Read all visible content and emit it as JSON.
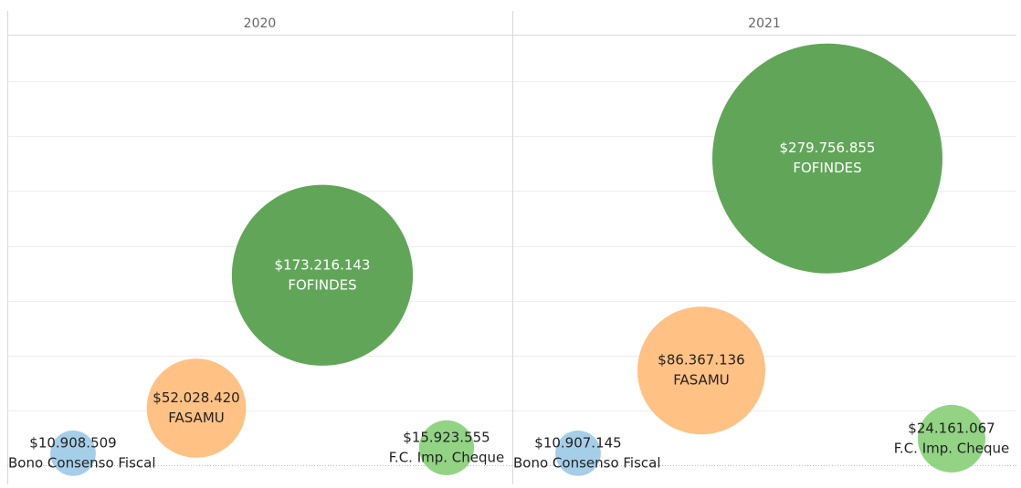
{
  "chart_data": [
    {
      "type": "bubble",
      "title": "2020",
      "categories": [
        "Bono Consenso Fiscal",
        "FASAMU",
        "FOFINDES",
        "F.C. Imp. Cheque"
      ],
      "values": [
        10908509,
        52028420,
        173216143,
        15923555
      ],
      "value_labels": [
        "$10.908.509",
        "$52.028.420",
        "$173.216.143",
        "$15.923.555"
      ],
      "colors": [
        "#a0cbe8",
        "#ffbe7d",
        "#59a14f",
        "#8cd17d"
      ],
      "ylim": [
        0,
        391000000
      ],
      "yticks": [
        50000000,
        100000000,
        150000000,
        200000000,
        250000000,
        300000000,
        350000000
      ],
      "grid": true
    },
    {
      "type": "bubble",
      "title": "2021",
      "categories": [
        "Bono Consenso Fiscal",
        "FASAMU",
        "FOFINDES",
        "F.C. Imp. Cheque"
      ],
      "values": [
        10907145,
        86367136,
        279756855,
        24161067
      ],
      "value_labels": [
        "$10.907.145",
        "$86.367.136",
        "$279.756.855",
        "$24.161.067"
      ],
      "colors": [
        "#a0cbe8",
        "#ffbe7d",
        "#59a14f",
        "#8cd17d"
      ],
      "ylim": [
        0,
        391000000
      ],
      "yticks": [
        50000000,
        100000000,
        150000000,
        200000000,
        250000000,
        300000000,
        350000000
      ],
      "grid": true
    }
  ]
}
